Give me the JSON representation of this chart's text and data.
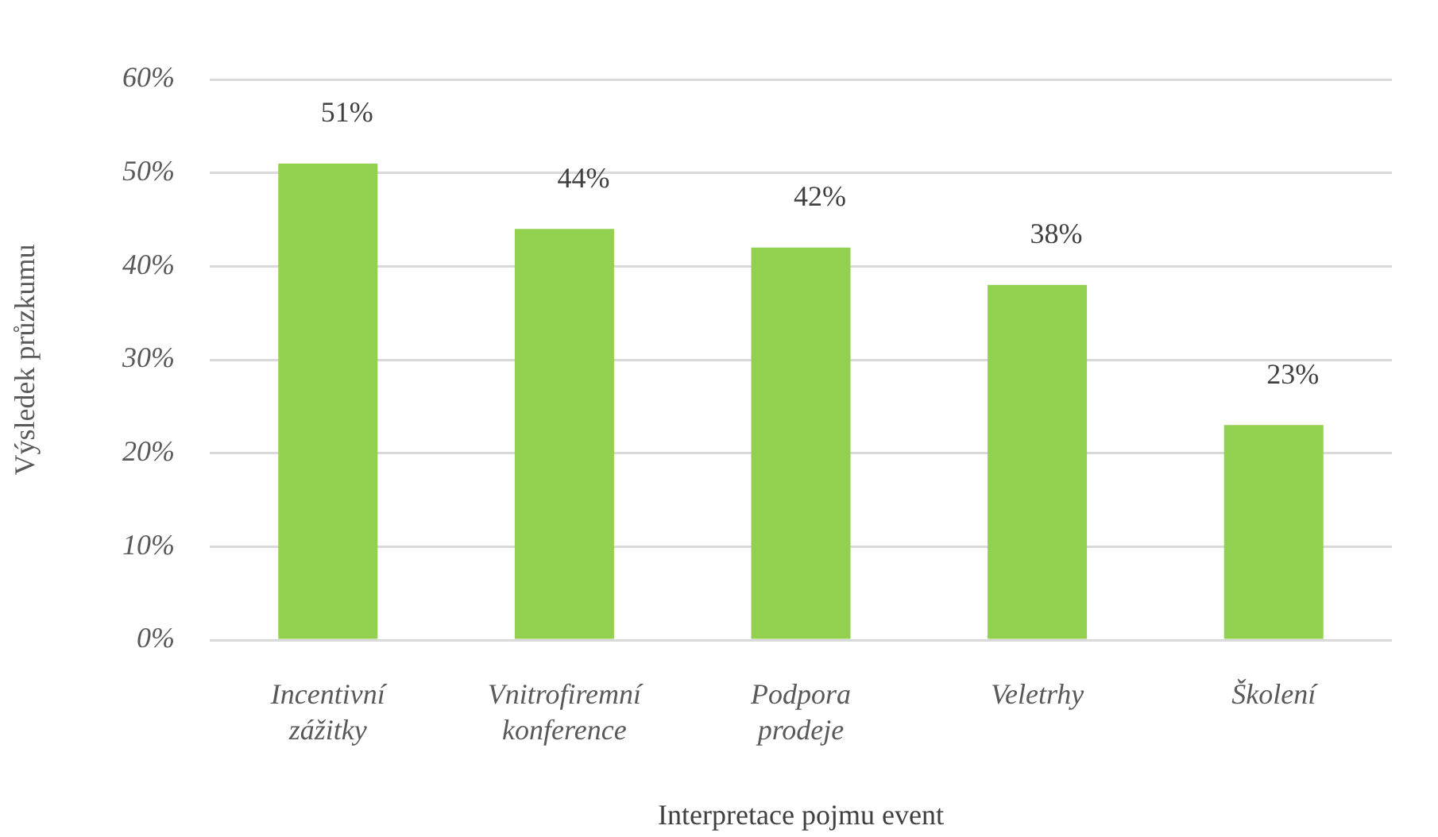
{
  "chart_data": {
    "type": "bar",
    "xlabel": "Interpretace pojmu event",
    "ylabel": "Výsledek průzkumu",
    "categories": [
      "Incentivní zážitky",
      "Vnitrofiremní konference",
      "Podpora prodeje",
      "Veletrhy",
      "Školení"
    ],
    "values": [
      51,
      44,
      42,
      38,
      23
    ],
    "value_labels": [
      "51%",
      "44%",
      "42%",
      "38%",
      "23%"
    ],
    "color": "#92d050",
    "ylim": [
      0,
      60
    ],
    "yticks": [
      {
        "value": 0,
        "label": "0%"
      },
      {
        "value": 10,
        "label": "10%"
      },
      {
        "value": 20,
        "label": "20%"
      },
      {
        "value": 30,
        "label": "30%"
      },
      {
        "value": 40,
        "label": "40%"
      },
      {
        "value": 50,
        "label": "50%"
      },
      {
        "value": 60,
        "label": "60%"
      }
    ],
    "grid": "y"
  }
}
